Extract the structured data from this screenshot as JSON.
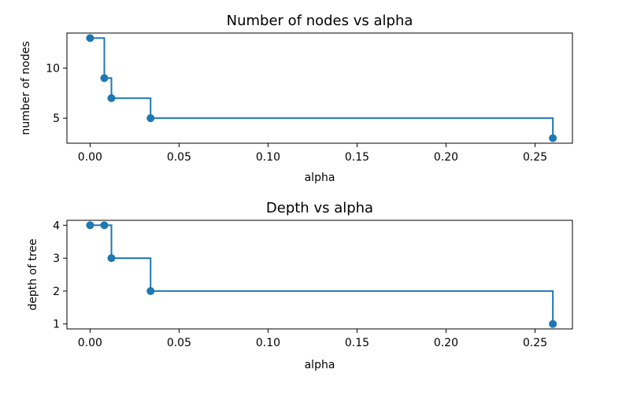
{
  "chart_data": [
    {
      "type": "line",
      "step": "post",
      "title": "Number of nodes vs alpha",
      "xlabel": "alpha",
      "ylabel": "number of nodes",
      "xlim": [
        -0.013,
        0.271
      ],
      "ylim": [
        2.5,
        13.5
      ],
      "xticks": [
        0.0,
        0.05,
        0.1,
        0.15,
        0.2,
        0.25
      ],
      "xtick_labels": [
        "0.00",
        "0.05",
        "0.10",
        "0.15",
        "0.20",
        "0.25"
      ],
      "yticks": [
        5,
        10
      ],
      "ytick_labels": [
        "5",
        "10"
      ],
      "color": "#1f77b4",
      "series": [
        {
          "x": [
            0.0,
            0.008,
            0.012,
            0.034,
            0.26
          ],
          "y": [
            13,
            9,
            7,
            5,
            3
          ]
        }
      ]
    },
    {
      "type": "line",
      "step": "post",
      "title": "Depth vs alpha",
      "xlabel": "alpha",
      "ylabel": "depth of tree",
      "xlim": [
        -0.013,
        0.271
      ],
      "ylim": [
        0.85,
        4.15
      ],
      "xticks": [
        0.0,
        0.05,
        0.1,
        0.15,
        0.2,
        0.25
      ],
      "xtick_labels": [
        "0.00",
        "0.05",
        "0.10",
        "0.15",
        "0.20",
        "0.25"
      ],
      "yticks": [
        1,
        2,
        3,
        4
      ],
      "ytick_labels": [
        "1",
        "2",
        "3",
        "4"
      ],
      "color": "#1f77b4",
      "series": [
        {
          "x": [
            0.0,
            0.008,
            0.012,
            0.034,
            0.26
          ],
          "y": [
            4,
            4,
            3,
            2,
            1
          ]
        }
      ]
    }
  ]
}
